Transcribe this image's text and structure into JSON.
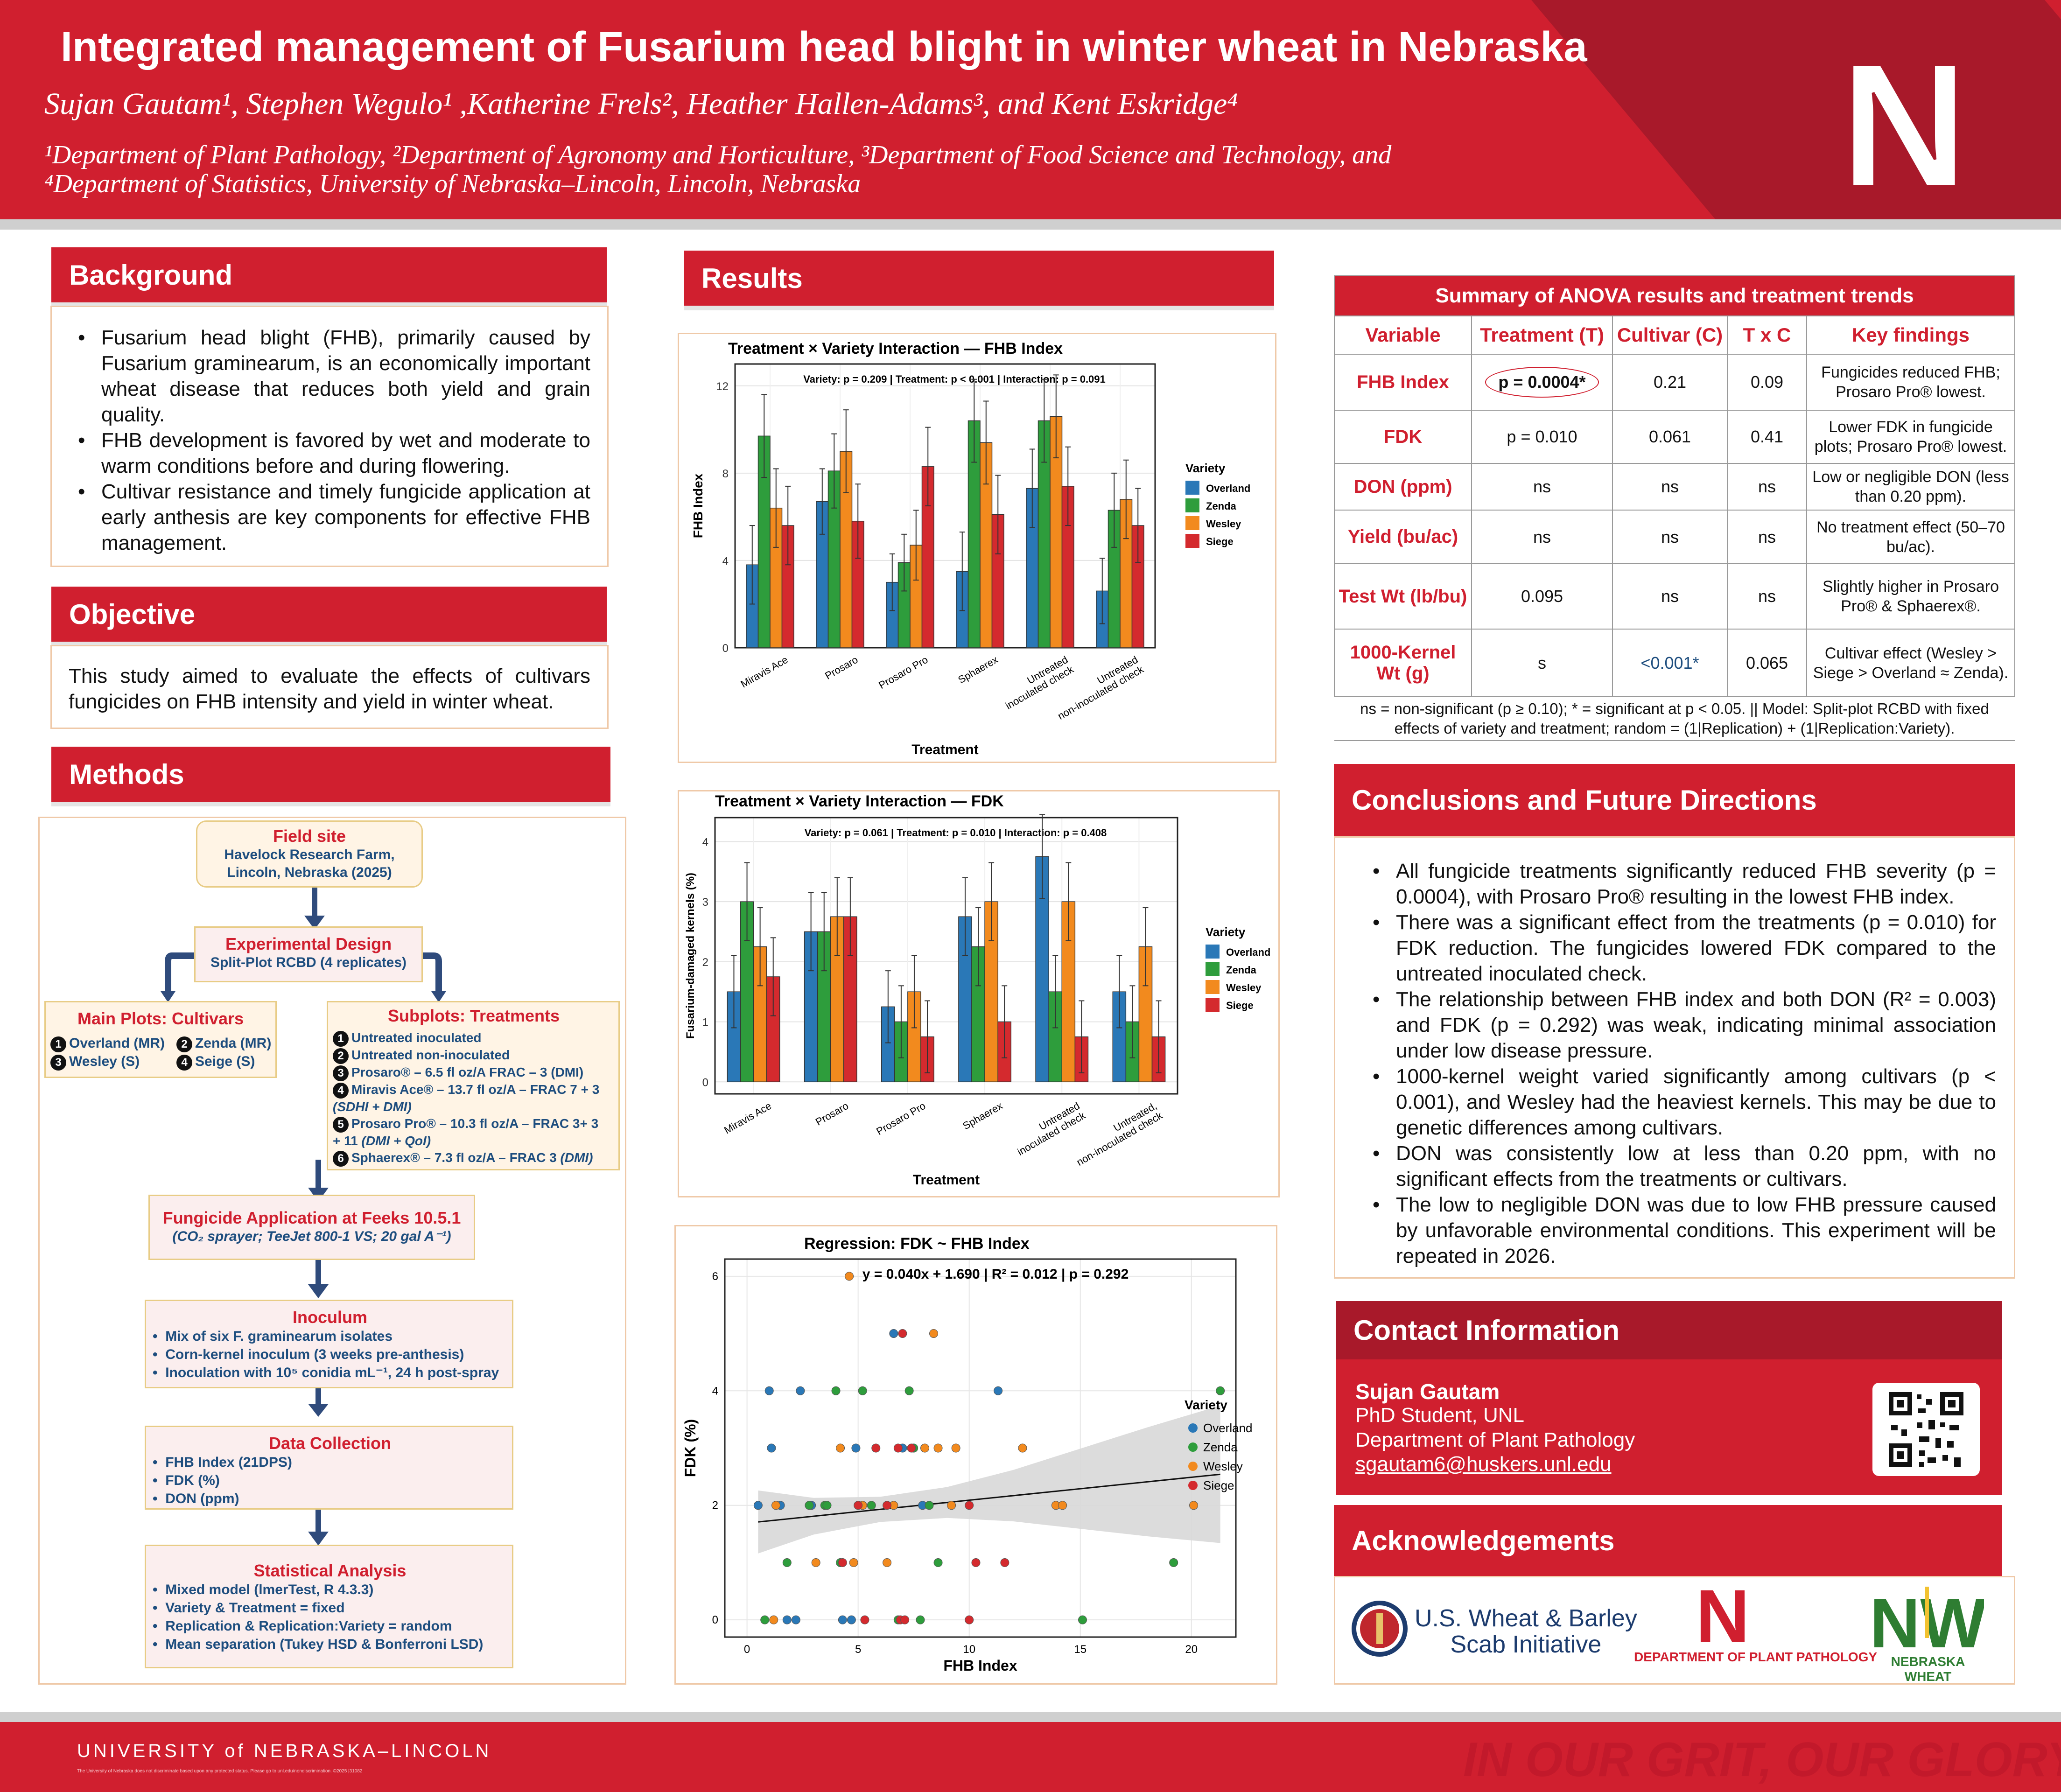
{
  "header": {
    "title": "Integrated management of Fusarium head blight in winter wheat in Nebraska",
    "authors": "Sujan Gautam¹, Stephen Wegulo¹ ,Katherine Frels², Heather Hallen-Adams³, and Kent Eskridge⁴",
    "affiliation_1": "¹Department of Plant Pathology, ²Department of Agronomy and Horticulture, ³Department of Food Science and Technology, and",
    "affiliation_2": "⁴Department of Statistics, University of Nebraska–Lincoln, Lincoln, Nebraska",
    "logo_letter": "N"
  },
  "background": {
    "heading": "Background",
    "bullets": [
      "Fusarium head blight (FHB), primarily caused by Fusarium graminearum, is an economically important wheat disease that reduces both yield and grain quality.",
      "FHB development is favored by wet and moderate to warm conditions before and during flowering.",
      "Cultivar resistance and timely fungicide application at early anthesis are key components for effective FHB management."
    ]
  },
  "objective": {
    "heading": "Objective",
    "text": "This study aimed to evaluate the effects of cultivars fungicides on FHB intensity and yield in winter wheat."
  },
  "methods": {
    "heading": "Methods",
    "field_site": {
      "title": "Field site",
      "line1": "Havelock Research Farm,",
      "line2": "Lincoln, Nebraska (2025)"
    },
    "design": {
      "title": "Experimental Design",
      "sub": "Split-Plot RCBD (4 replicates)"
    },
    "main_plots": {
      "title": "Main Plots: Cultivars",
      "items": [
        "Overland (MR)",
        "Zenda (MR)",
        "Wesley (S)",
        "Seige (S)"
      ],
      "nums": [
        "1",
        "2",
        "3",
        "4"
      ]
    },
    "subplots": {
      "title": "Subplots: Treatments",
      "nums": [
        "1",
        "2",
        "3",
        "4",
        "5",
        "6"
      ],
      "t1": "Untreated inoculated",
      "t2": "Untreated non-inoculated",
      "t3": "Prosaro® – 6.5 fl oz/A FRAC – 3 (DMI)",
      "t4a": "Miravis Ace® – 13.7 fl oz/A – FRAC 7 + 3",
      "t4b": "(SDHI + DMI)",
      "t5a": "Prosaro Pro® – 10.3 fl oz/A – FRAC 3+ 3",
      "t5b": "+ 11 ",
      "t5c": "(DMI + QoI)",
      "t6a": "Sphaerex® – 7.3 fl oz/A – FRAC 3 ",
      "t6b": "(DMI)"
    },
    "application": {
      "title": "Fungicide Application at Feeks 10.5.1",
      "sub": "(CO₂ sprayer; TeeJet 800-1 VS; 20 gal A⁻¹)"
    },
    "inoculum": {
      "title": "Inoculum",
      "items": [
        "Mix of six F. graminearum isolates",
        "Corn-kernel inoculum (3 weeks pre-anthesis)",
        "Inoculation with 10⁵ conidia mL⁻¹, 24 h post-spray"
      ]
    },
    "data_collection": {
      "title": "Data Collection",
      "items": [
        "FHB Index (21DPS)",
        "FDK (%)",
        "DON (ppm)"
      ]
    },
    "stats": {
      "title": "Statistical Analysis",
      "items": [
        "Mixed model (lmerTest, R 4.3.3)",
        "Variety & Treatment = fixed",
        "Replication & Replication:Variety = random",
        "Mean separation (Tukey HSD & Bonferroni LSD)"
      ]
    }
  },
  "results": {
    "heading": "Results"
  },
  "colors": {
    "Overland": "#2a78b7",
    "Zenda": "#2e9d3c",
    "Wesley": "#f28a1e",
    "Siege": "#d42a2e",
    "brand_red": "#d01f2f",
    "brand_dark": "#a8192a"
  },
  "chart_data": [
    {
      "type": "bar",
      "title": "Treatment × Variety Interaction — FHB Index",
      "annotation": "Variety: p = 0.209 | Treatment: p < 0.001 | Interaction: p = 0.091",
      "xlabel": "Treatment",
      "ylabel": "FHB Index",
      "ylim": [
        0,
        13
      ],
      "yticks": [
        0,
        4,
        8,
        12
      ],
      "legend_title": "Variety",
      "categories": [
        "Miravis Ace",
        "Prosaro",
        "Prosaro Pro",
        "Sphaerex",
        "Untreated inoculated check",
        "Untreated non-inoculated check"
      ],
      "series": [
        {
          "name": "Overland",
          "values": [
            3.8,
            6.7,
            3.0,
            3.5,
            7.3,
            2.6
          ],
          "err": [
            1.8,
            1.5,
            1.3,
            1.8,
            1.8,
            1.5
          ]
        },
        {
          "name": "Zenda",
          "values": [
            9.7,
            8.1,
            3.9,
            10.4,
            10.4,
            6.3
          ],
          "err": [
            1.9,
            1.7,
            1.3,
            1.9,
            1.9,
            1.7
          ]
        },
        {
          "name": "Wesley",
          "values": [
            6.4,
            9.0,
            4.7,
            9.4,
            10.6,
            6.8
          ],
          "err": [
            1.8,
            1.9,
            1.6,
            1.9,
            1.9,
            1.8
          ]
        },
        {
          "name": "Siege",
          "values": [
            5.6,
            5.8,
            8.3,
            6.1,
            7.4,
            5.6
          ],
          "err": [
            1.8,
            1.7,
            1.8,
            1.8,
            1.8,
            1.7
          ]
        }
      ]
    },
    {
      "type": "bar",
      "title": "Treatment × Variety Interaction — FDK",
      "annotation": "Variety: p = 0.061 | Treatment: p = 0.010 | Interaction: p = 0.408",
      "xlabel": "Treatment",
      "ylabel": "Fusarium-damaged kernels (%)",
      "ylim": [
        -0.2,
        4.4
      ],
      "yticks": [
        0,
        1,
        2,
        3,
        4
      ],
      "legend_title": "Variety",
      "categories": [
        "Miravis Ace",
        "Prosaro",
        "Prosaro Pro",
        "Sphaerex",
        "Untreated inoculated check",
        "Untreated, non-inoculated check"
      ],
      "series": [
        {
          "name": "Overland",
          "values": [
            1.5,
            2.5,
            1.25,
            2.75,
            3.75,
            1.5
          ],
          "err": [
            0.6,
            0.65,
            0.6,
            0.65,
            0.7,
            0.6
          ]
        },
        {
          "name": "Zenda",
          "values": [
            3.0,
            2.5,
            1.0,
            2.25,
            1.5,
            1.0
          ],
          "err": [
            0.65,
            0.65,
            0.6,
            0.65,
            0.6,
            0.6
          ]
        },
        {
          "name": "Wesley",
          "values": [
            2.25,
            2.75,
            1.5,
            3.0,
            3.0,
            2.25
          ],
          "err": [
            0.65,
            0.65,
            0.6,
            0.65,
            0.65,
            0.65
          ]
        },
        {
          "name": "Siege",
          "values": [
            1.75,
            2.75,
            0.75,
            1.0,
            0.75,
            0.75
          ],
          "err": [
            0.65,
            0.65,
            0.6,
            0.6,
            0.6,
            0.6
          ]
        }
      ]
    },
    {
      "type": "scatter",
      "title": "Regression: FDK ~ FHB Index",
      "annotation": "y = 0.040x + 1.690 | R² = 0.012 | p = 0.292",
      "xlabel": "FHB Index",
      "ylabel": "FDK (%)",
      "xlim": [
        -1,
        22
      ],
      "ylim": [
        -0.3,
        6.3
      ],
      "xticks": [
        0,
        5,
        10,
        15,
        20
      ],
      "yticks": [
        0,
        2,
        4,
        6
      ],
      "legend_title": "Variety",
      "regression": {
        "slope": 0.04,
        "intercept": 1.69
      },
      "points": [
        {
          "s": "Overland",
          "x": 0.5,
          "y": 2
        },
        {
          "s": "Overland",
          "x": 1.0,
          "y": 4
        },
        {
          "s": "Overland",
          "x": 1.1,
          "y": 3
        },
        {
          "s": "Overland",
          "x": 1.8,
          "y": 0
        },
        {
          "s": "Overland",
          "x": 2.2,
          "y": 0
        },
        {
          "s": "Overland",
          "x": 2.4,
          "y": 4
        },
        {
          "s": "Overland",
          "x": 2.9,
          "y": 2
        },
        {
          "s": "Overland",
          "x": 4.3,
          "y": 0
        },
        {
          "s": "Overland",
          "x": 4.7,
          "y": 0
        },
        {
          "s": "Overland",
          "x": 4.9,
          "y": 3
        },
        {
          "s": "Overland",
          "x": 6.6,
          "y": 5
        },
        {
          "s": "Overland",
          "x": 7.0,
          "y": 3
        },
        {
          "s": "Overland",
          "x": 7.9,
          "y": 2
        },
        {
          "s": "Overland",
          "x": 11.3,
          "y": 4
        },
        {
          "s": "Overland",
          "x": 1.5,
          "y": 2
        },
        {
          "s": "Zenda",
          "x": 0.8,
          "y": 0
        },
        {
          "s": "Zenda",
          "x": 1.8,
          "y": 1
        },
        {
          "s": "Zenda",
          "x": 2.8,
          "y": 2
        },
        {
          "s": "Zenda",
          "x": 3.5,
          "y": 2
        },
        {
          "s": "Zenda",
          "x": 4.0,
          "y": 4
        },
        {
          "s": "Zenda",
          "x": 4.2,
          "y": 1
        },
        {
          "s": "Zenda",
          "x": 5.2,
          "y": 4
        },
        {
          "s": "Zenda",
          "x": 5.6,
          "y": 2
        },
        {
          "s": "Zenda",
          "x": 7.3,
          "y": 4
        },
        {
          "s": "Zenda",
          "x": 7.5,
          "y": 3
        },
        {
          "s": "Zenda",
          "x": 7.8,
          "y": 0
        },
        {
          "s": "Zenda",
          "x": 8.2,
          "y": 2
        },
        {
          "s": "Zenda",
          "x": 8.6,
          "y": 1
        },
        {
          "s": "Zenda",
          "x": 15.1,
          "y": 0
        },
        {
          "s": "Zenda",
          "x": 19.2,
          "y": 1
        },
        {
          "s": "Zenda",
          "x": 21.3,
          "y": 4
        },
        {
          "s": "Zenda",
          "x": 3.6,
          "y": 2
        },
        {
          "s": "Zenda",
          "x": 6.8,
          "y": 0
        },
        {
          "s": "Wesley",
          "x": 1.2,
          "y": 0
        },
        {
          "s": "Wesley",
          "x": 1.3,
          "y": 2
        },
        {
          "s": "Wesley",
          "x": 3.1,
          "y": 1
        },
        {
          "s": "Wesley",
          "x": 4.2,
          "y": 3
        },
        {
          "s": "Wesley",
          "x": 4.6,
          "y": 6
        },
        {
          "s": "Wesley",
          "x": 4.8,
          "y": 1
        },
        {
          "s": "Wesley",
          "x": 5.2,
          "y": 2
        },
        {
          "s": "Wesley",
          "x": 6.3,
          "y": 1
        },
        {
          "s": "Wesley",
          "x": 6.6,
          "y": 2
        },
        {
          "s": "Wesley",
          "x": 8.0,
          "y": 3
        },
        {
          "s": "Wesley",
          "x": 8.4,
          "y": 5
        },
        {
          "s": "Wesley",
          "x": 8.6,
          "y": 3
        },
        {
          "s": "Wesley",
          "x": 9.4,
          "y": 3
        },
        {
          "s": "Wesley",
          "x": 12.4,
          "y": 3
        },
        {
          "s": "Wesley",
          "x": 13.9,
          "y": 2
        },
        {
          "s": "Wesley",
          "x": 14.2,
          "y": 2
        },
        {
          "s": "Wesley",
          "x": 20.1,
          "y": 2
        },
        {
          "s": "Wesley",
          "x": 9.2,
          "y": 2
        },
        {
          "s": "Siege",
          "x": 4.3,
          "y": 1
        },
        {
          "s": "Siege",
          "x": 5.0,
          "y": 2
        },
        {
          "s": "Siege",
          "x": 5.3,
          "y": 0
        },
        {
          "s": "Siege",
          "x": 5.8,
          "y": 3
        },
        {
          "s": "Siege",
          "x": 6.3,
          "y": 2
        },
        {
          "s": "Siege",
          "x": 6.8,
          "y": 3
        },
        {
          "s": "Siege",
          "x": 6.9,
          "y": 0
        },
        {
          "s": "Siege",
          "x": 7.0,
          "y": 5
        },
        {
          "s": "Siege",
          "x": 7.1,
          "y": 0
        },
        {
          "s": "Siege",
          "x": 10.0,
          "y": 0
        },
        {
          "s": "Siege",
          "x": 10.3,
          "y": 1
        },
        {
          "s": "Siege",
          "x": 11.6,
          "y": 1
        },
        {
          "s": "Siege",
          "x": 7.4,
          "y": 3
        },
        {
          "s": "Siege",
          "x": 10.0,
          "y": 2
        }
      ]
    }
  ],
  "anova": {
    "caption": "Summary of ANOVA results and treatment trends",
    "headers": [
      "Variable",
      "Treatment (T)",
      "Cultivar (C)",
      "T x C",
      "Key findings"
    ],
    "rows": [
      {
        "variable": "FHB Index",
        "t": "p = 0.0004*",
        "c": "0.21",
        "txc": "0.09",
        "finding": "Fungicides reduced FHB; Prosaro Pro® lowest."
      },
      {
        "variable": "FDK",
        "t": "p = 0.010",
        "c": "0.061",
        "txc": "0.41",
        "finding": "Lower FDK in fungicide plots; Prosaro Pro® lowest."
      },
      {
        "variable": "DON (ppm)",
        "t": "ns",
        "c": "ns",
        "txc": "ns",
        "finding": "Low or negligible DON (less than 0.20 ppm)."
      },
      {
        "variable": "Yield (bu/ac)",
        "t": "ns",
        "c": "ns",
        "txc": "ns",
        "finding": "No treatment effect  (50–70 bu/ac)."
      },
      {
        "variable": "Test Wt (lb/bu)",
        "t": "0.095",
        "c": "ns",
        "txc": "ns",
        "finding": "Slightly higher in Prosaro Pro® & Sphaerex®."
      },
      {
        "variable": "1000-Kernel Wt (g)",
        "t": "s",
        "c": "<0.001*",
        "txc": "0.065",
        "finding": "Cultivar effect (Wesley > Siege > Overland ≈ Zenda)."
      }
    ],
    "footnote": "ns = non-significant (p ≥ 0.10); * = significant at p < 0.05. || Model: Split-plot RCBD with fixed effects of variety and treatment; random = (1|Replication) + (1|Replication:Variety)."
  },
  "conclusions": {
    "heading": "Conclusions and Future Directions",
    "bullets": [
      "All fungicide treatments significantly reduced FHB severity (p = 0.0004), with Prosaro Pro® resulting in the lowest FHB index.",
      "There was a significant effect from the treatments (p = 0.010) for FDK reduction. The fungicides lowered FDK compared to the untreated inoculated check.",
      "The relationship between FHB index and both DON (R² = 0.003) and FDK (p = 0.292) was weak, indicating minimal association under low disease pressure.",
      "1000-kernel weight varied significantly among cultivars (p < 0.001), and Wesley had the heaviest kernels. This may be due to genetic differences among cultivars.",
      "DON was consistently low at less than 0.20 ppm, with no significant effects from the treatments or cultivars.",
      "The low to negligible DON was due to low FHB pressure caused by unfavorable environmental conditions. This experiment will be repeated in 2026."
    ]
  },
  "contact": {
    "heading": "Contact Information",
    "name": "Sujan Gautam",
    "role": "PhD Student, UNL",
    "dept": "Department of Plant Pathology",
    "email": "sgautam6@huskers.unl.edu"
  },
  "acknowledgements": {
    "heading": "Acknowledgements",
    "usw_line1": "U.S. Wheat & Barley",
    "usw_line2": "Scab Initiative",
    "dpp": "DEPARTMENT OF PLANT PATHOLOGY",
    "nw_mark": "NW",
    "nw": "NEBRASKA WHEAT"
  },
  "footer": {
    "university": "UNIVERSITY of NEBRASKA–LINCOLN",
    "fine_print": "The University of Nebraska does not discriminate based upon any protected status. Please go to unl.edu/nondiscrimination. ©2025 |31082",
    "tagline": "IN OUR GRIT, OUR GLORY"
  }
}
